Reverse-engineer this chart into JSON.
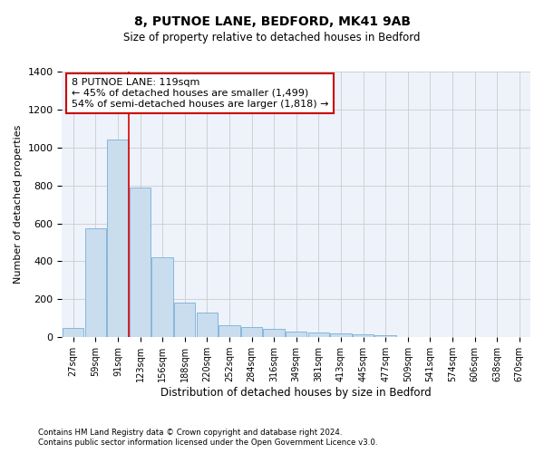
{
  "title": "8, PUTNOE LANE, BEDFORD, MK41 9AB",
  "subtitle": "Size of property relative to detached houses in Bedford",
  "xlabel": "Distribution of detached houses by size in Bedford",
  "ylabel": "Number of detached properties",
  "footnote1": "Contains HM Land Registry data © Crown copyright and database right 2024.",
  "footnote2": "Contains public sector information licensed under the Open Government Licence v3.0.",
  "annotation_line1": "8 PUTNOE LANE: 119sqm",
  "annotation_line2": "← 45% of detached houses are smaller (1,499)",
  "annotation_line3": "54% of semi-detached houses are larger (1,818) →",
  "bar_color": "#c9ddef",
  "bar_edge_color": "#7aafd4",
  "grid_color": "#cccccc",
  "background_color": "#edf2fb",
  "ref_line_color": "#dd0000",
  "annotation_box_edge_color": "#cc0000",
  "categories": [
    "27sqm",
    "59sqm",
    "91sqm",
    "123sqm",
    "156sqm",
    "188sqm",
    "220sqm",
    "252sqm",
    "284sqm",
    "316sqm",
    "349sqm",
    "381sqm",
    "413sqm",
    "445sqm",
    "477sqm",
    "509sqm",
    "541sqm",
    "574sqm",
    "606sqm",
    "638sqm",
    "670sqm"
  ],
  "values": [
    47,
    573,
    1040,
    790,
    420,
    183,
    128,
    62,
    55,
    45,
    28,
    27,
    20,
    15,
    12,
    0,
    0,
    0,
    0,
    0,
    0
  ],
  "ylim": [
    0,
    1400
  ],
  "yticks": [
    0,
    200,
    400,
    600,
    800,
    1000,
    1200,
    1400
  ],
  "ref_bar_index": 3
}
